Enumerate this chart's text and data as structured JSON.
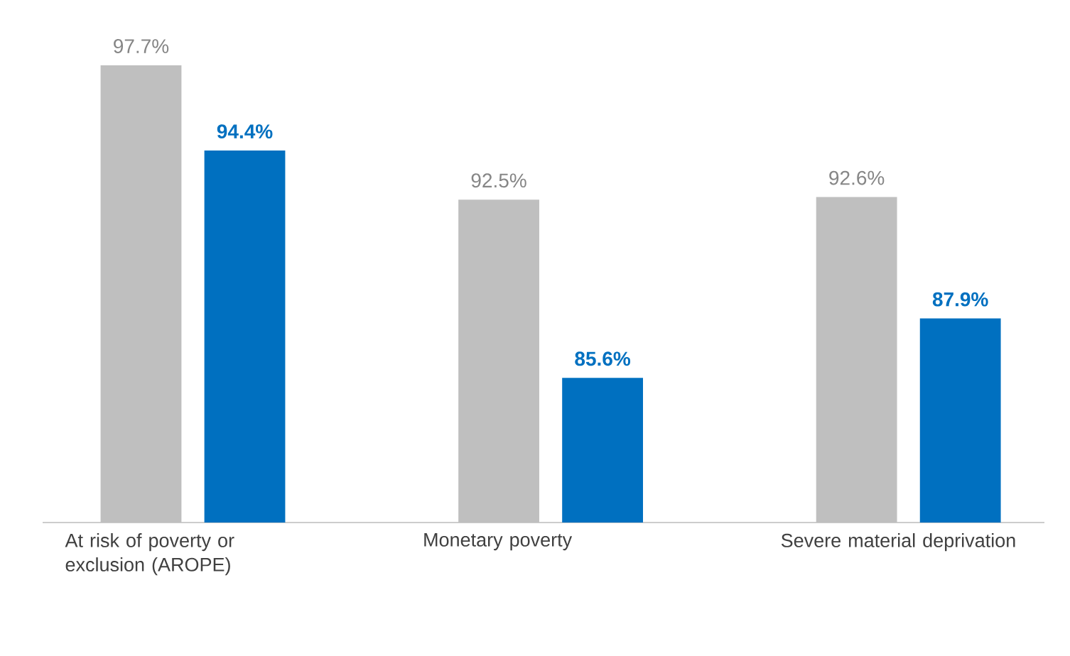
{
  "chart_data": {
    "type": "bar",
    "categories": [
      "At risk of poverty or exclusion (AROPE)",
      "Monetary poverty",
      "Severe material deprivation"
    ],
    "ylim": [
      80,
      97.7
    ],
    "tick_labels": "x",
    "series": [
      {
        "color": "#bfbfbf",
        "values": [
          97.7,
          92.5,
          92.6
        ],
        "value_labels": [
          "97.7%",
          "92.5%",
          "92.6%"
        ]
      },
      {
        "color": "#0070c0",
        "values": [
          94.4,
          85.6,
          87.9
        ],
        "value_labels": [
          "94.4%",
          "85.6%",
          "87.9%"
        ]
      }
    ]
  }
}
